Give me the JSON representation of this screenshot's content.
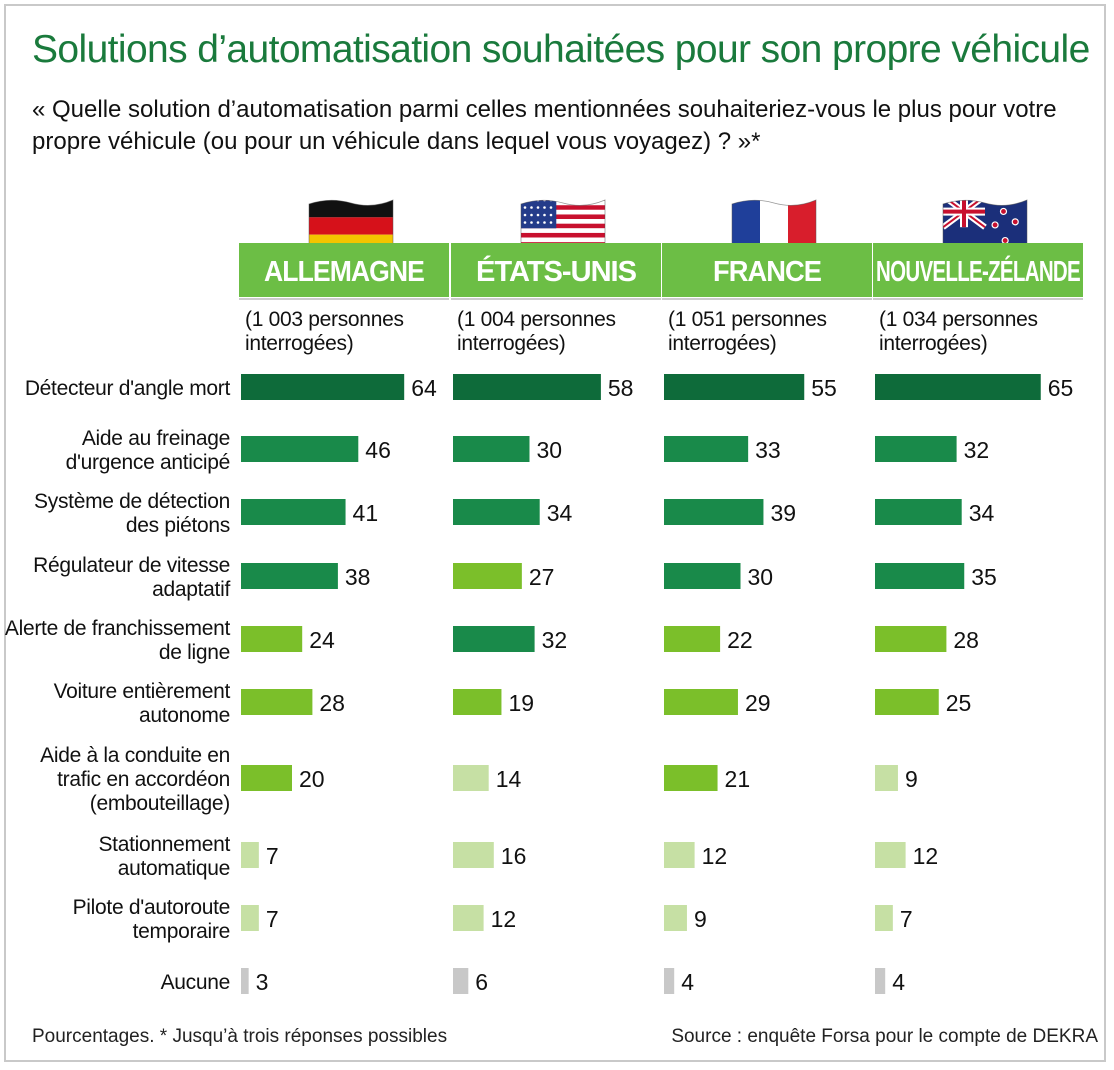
{
  "title": "Solutions d’automatisation souhaitées pour son propre véhicule",
  "question": "« Quelle solution d’automatisation parmi celles mentionnées souhaiteriez-vous le plus pour votre propre véhicule (ou pour un véhicule dans lequel vous voyagez) ? »*",
  "footnote": "Pourcentages. * Jusqu’à trois réponses possibles",
  "source": "Source : enquête Forsa pour le compte de DEKRA",
  "colors": {
    "header_green": "#6cbe45",
    "title_green": "#1a7a3c",
    "dark_green": "#0e6b3a",
    "medium_green": "#198a4a",
    "light_green": "#7bbf2a",
    "pale_green": "#c6e0a4",
    "grey": "#c8c8c8"
  },
  "chart_data": {
    "type": "bar",
    "orientation": "horizontal",
    "unit": "%",
    "categories": [
      [
        "Détecteur d'angle mort"
      ],
      [
        "Aide au freinage",
        "d'urgence anticipé"
      ],
      [
        "Système de détection",
        "des piétons"
      ],
      [
        "Régulateur de vitesse",
        "adaptatif"
      ],
      [
        "Alerte de franchissement",
        "de ligne"
      ],
      [
        "Voiture entièrement",
        "autonome"
      ],
      [
        "Aide à la conduite en",
        "trafic en accordéon",
        "(embouteillage)"
      ],
      [
        "Stationnement",
        "automatique"
      ],
      [
        "Pilote d'autoroute",
        "temporaire"
      ],
      [
        "Aucune"
      ]
    ],
    "series": [
      {
        "name": "ALLEMAGNE",
        "flag": "germany-flag",
        "sample": [
          "(1 003 personnes",
          "interrogées)"
        ],
        "values": [
          64,
          46,
          41,
          38,
          24,
          28,
          20,
          7,
          7,
          3
        ],
        "tiers": [
          "dark",
          "medium",
          "medium",
          "medium",
          "light",
          "light",
          "light",
          "pale",
          "pale",
          "grey"
        ]
      },
      {
        "name": "ÉTATS-UNIS",
        "flag": "usa-flag",
        "sample": [
          "(1 004 personnes",
          "interrogées)"
        ],
        "values": [
          58,
          30,
          34,
          27,
          32,
          19,
          14,
          16,
          12,
          6
        ],
        "tiers": [
          "dark",
          "medium",
          "medium",
          "light",
          "medium",
          "light",
          "pale",
          "pale",
          "pale",
          "grey"
        ]
      },
      {
        "name": "FRANCE",
        "flag": "france-flag",
        "sample": [
          "(1 051 personnes",
          "interrogées)"
        ],
        "values": [
          55,
          33,
          39,
          30,
          22,
          29,
          21,
          12,
          9,
          4
        ],
        "tiers": [
          "dark",
          "medium",
          "medium",
          "medium",
          "light",
          "light",
          "light",
          "pale",
          "pale",
          "grey"
        ]
      },
      {
        "name": "NOUVELLE-ZÉLANDE",
        "flag": "new-zealand-flag",
        "sample": [
          "(1 034 personnes",
          "interrogées)"
        ],
        "values": [
          65,
          32,
          34,
          35,
          28,
          25,
          9,
          12,
          7,
          4
        ],
        "tiers": [
          "dark",
          "medium",
          "medium",
          "medium",
          "light",
          "light",
          "pale",
          "pale",
          "pale",
          "grey"
        ]
      }
    ]
  }
}
